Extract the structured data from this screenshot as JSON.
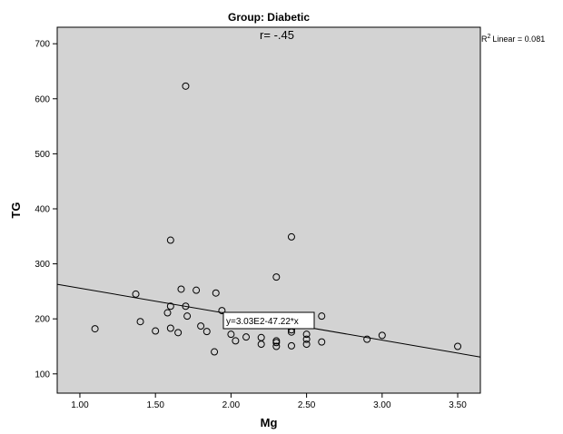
{
  "chart_data": {
    "type": "scatter",
    "title": "Group: Diabetic",
    "xlabel": "Mg",
    "ylabel": "TG",
    "xlim": [
      0.85,
      3.65
    ],
    "ylim": [
      65,
      730
    ],
    "x_ticks": [
      1.0,
      1.5,
      2.0,
      2.5,
      3.0,
      3.5
    ],
    "x_tick_labels": [
      "1.00",
      "1.50",
      "2.00",
      "2.50",
      "3.00",
      "3.50"
    ],
    "y_ticks": [
      100,
      200,
      300,
      400,
      500,
      600,
      700
    ],
    "y_tick_labels": [
      "100",
      "200",
      "300",
      "400",
      "500",
      "600",
      "700"
    ],
    "annotation": "r= -.45",
    "r2_label": "Linear = 0.081",
    "r2_prefix": "R",
    "r2_sup": "2",
    "equation": "y=3.03E2-47.22*x",
    "fit_line": {
      "intercept": 303,
      "slope": -47.22
    },
    "grid": false,
    "background": "#d3d3d3",
    "points": [
      {
        "x": 1.1,
        "y": 182
      },
      {
        "x": 1.37,
        "y": 245
      },
      {
        "x": 1.4,
        "y": 195
      },
      {
        "x": 1.5,
        "y": 178
      },
      {
        "x": 1.58,
        "y": 211
      },
      {
        "x": 1.6,
        "y": 343
      },
      {
        "x": 1.6,
        "y": 223
      },
      {
        "x": 1.6,
        "y": 183
      },
      {
        "x": 1.65,
        "y": 175
      },
      {
        "x": 1.67,
        "y": 254
      },
      {
        "x": 1.7,
        "y": 623
      },
      {
        "x": 1.7,
        "y": 223
      },
      {
        "x": 1.71,
        "y": 205
      },
      {
        "x": 1.77,
        "y": 252
      },
      {
        "x": 1.8,
        "y": 187
      },
      {
        "x": 1.84,
        "y": 177
      },
      {
        "x": 1.89,
        "y": 140
      },
      {
        "x": 1.9,
        "y": 247
      },
      {
        "x": 1.94,
        "y": 215
      },
      {
        "x": 2.0,
        "y": 172
      },
      {
        "x": 2.03,
        "y": 160
      },
      {
        "x": 2.1,
        "y": 167
      },
      {
        "x": 2.2,
        "y": 166
      },
      {
        "x": 2.2,
        "y": 154
      },
      {
        "x": 2.3,
        "y": 276
      },
      {
        "x": 2.3,
        "y": 160
      },
      {
        "x": 2.3,
        "y": 157
      },
      {
        "x": 2.3,
        "y": 150
      },
      {
        "x": 2.4,
        "y": 349
      },
      {
        "x": 2.4,
        "y": 176
      },
      {
        "x": 2.4,
        "y": 180
      },
      {
        "x": 2.4,
        "y": 151
      },
      {
        "x": 2.5,
        "y": 172
      },
      {
        "x": 2.5,
        "y": 163
      },
      {
        "x": 2.5,
        "y": 154
      },
      {
        "x": 2.6,
        "y": 205
      },
      {
        "x": 2.6,
        "y": 158
      },
      {
        "x": 2.9,
        "y": 163
      },
      {
        "x": 3.0,
        "y": 170
      },
      {
        "x": 3.5,
        "y": 150
      }
    ]
  }
}
